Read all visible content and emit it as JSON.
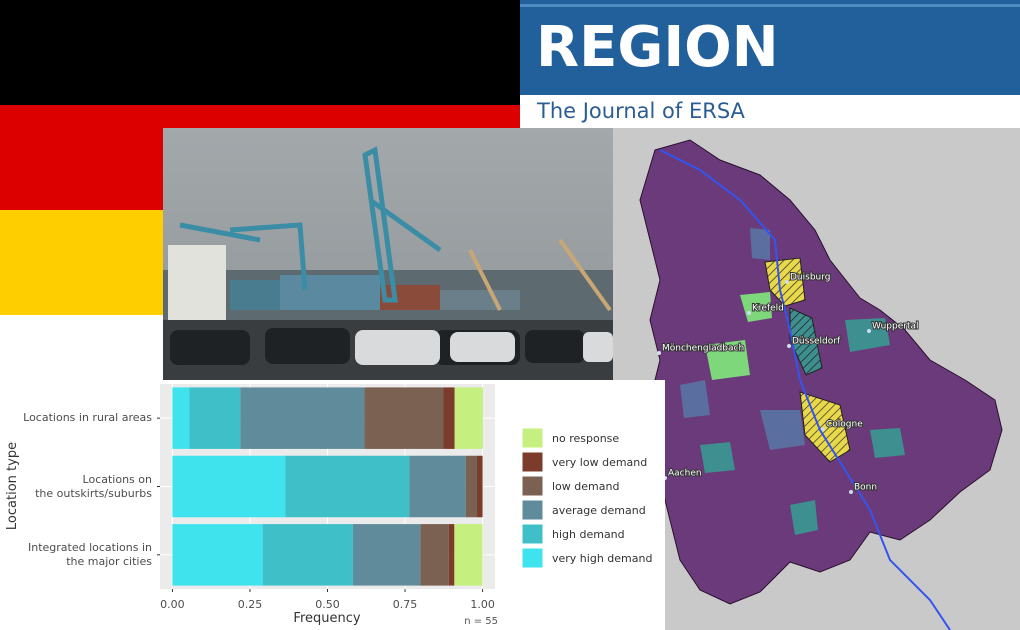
{
  "header": {
    "title": "REGION",
    "subtitle": "The Journal of ERSA"
  },
  "map": {
    "cities": [
      "Duisburg",
      "Krefeld",
      "Wuppertal",
      "Düsseldorf",
      "Mönchengladbach",
      "Cologne",
      "Bonn",
      "Aachen"
    ]
  },
  "chart_data": {
    "type": "bar",
    "orientation": "horizontal",
    "stacked": true,
    "y_label": "Location type",
    "x_label": "Frequency",
    "note": "n = 55",
    "categories": [
      "Locations in rural areas",
      "Locations on\nthe outskirts/suburbs",
      "Integrated locations in\nthe major cities"
    ],
    "series": [
      {
        "name": "very high demand",
        "color": "#3ee3ee",
        "values": [
          0.055,
          0.364,
          0.291
        ]
      },
      {
        "name": "high demand",
        "color": "#3fc0c9",
        "values": [
          0.164,
          0.4,
          0.291
        ]
      },
      {
        "name": "average demand",
        "color": "#5f8b9a",
        "values": [
          0.4,
          0.182,
          0.218
        ]
      },
      {
        "name": "low demand",
        "color": "#7a6152",
        "values": [
          0.255,
          0.036,
          0.091
        ]
      },
      {
        "name": "very low demand",
        "color": "#7b3c2b",
        "values": [
          0.036,
          0.018,
          0.018
        ]
      },
      {
        "name": "no response",
        "color": "#c5f080",
        "values": [
          0.091,
          0,
          0.091
        ]
      }
    ],
    "xlim": [
      -0.04,
      1.04
    ],
    "xticks": [
      {
        "value": 0,
        "label": "0.00"
      },
      {
        "value": 0.25,
        "label": "0.25"
      },
      {
        "value": 0.5,
        "label": "0.50"
      },
      {
        "value": 0.75,
        "label": "0.75"
      },
      {
        "value": 1,
        "label": "1.00"
      }
    ],
    "grid": true
  }
}
